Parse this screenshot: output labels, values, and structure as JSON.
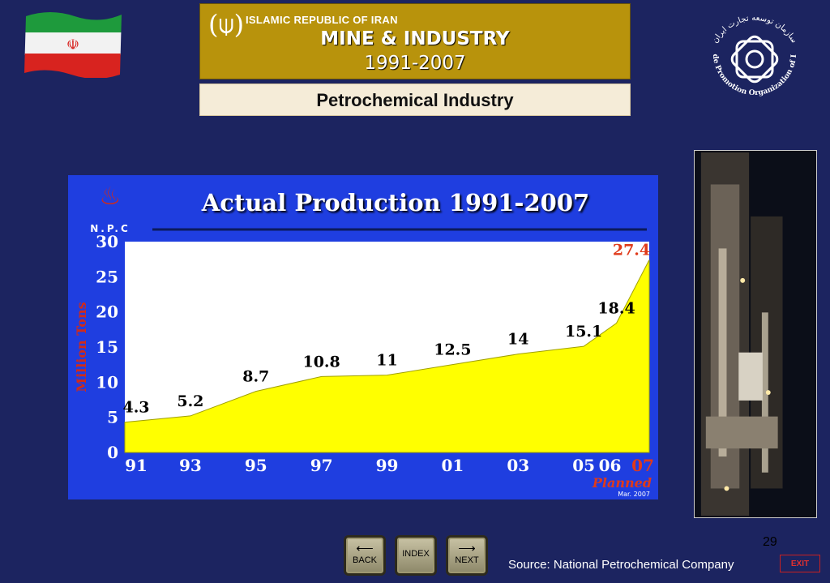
{
  "header": {
    "country": "ISLAMIC REPUBLIC OF IRAN",
    "title": "MINE & INDUSTRY",
    "years": "1991-2007",
    "emblem_icon": "iran-emblem-icon"
  },
  "subtitle": "Petrochemical Industry",
  "org_logo": {
    "icon": "trade-promotion-logo-icon",
    "text_persian": "سازمان توسعه تجارت ایران",
    "text_english": "Trade Promotion Organization of Iran"
  },
  "npc_logo": {
    "icon": "npc-flame-logo-icon",
    "text": "N.P.C"
  },
  "chart_data": {
    "type": "area",
    "title": "Actual Production 1991-2007",
    "ylabel": "Million Tons",
    "xlabel": "",
    "ylim": [
      0,
      30
    ],
    "yticks": [
      0,
      5,
      10,
      15,
      20,
      25,
      30
    ],
    "x_ticks": [
      "91",
      "93",
      "95",
      "97",
      "99",
      "01",
      "03",
      "05",
      "06",
      "07"
    ],
    "x_tick_positions": [
      1991,
      1993,
      1995,
      1997,
      1999,
      2001,
      2003,
      2005,
      2006,
      2007
    ],
    "x": [
      1991,
      1993,
      1995,
      1997,
      1999,
      2001,
      2003,
      2005,
      2006,
      2007
    ],
    "values": [
      4.3,
      5.2,
      8.7,
      10.8,
      11,
      12.5,
      14,
      15.1,
      18.4,
      27.4
    ],
    "data_labels": [
      "4.3",
      "5.2",
      "8.7",
      "10.8",
      "11",
      "12.5",
      "14",
      "15.1",
      "18.4",
      "27.4"
    ],
    "highlight_last": true,
    "planned_label": "Planned",
    "date_note": "Mar. 2007",
    "fill_color": "#ffff00",
    "plot_bg": "#ffffff",
    "panel_bg": "#1f3ee0",
    "highlight_color": "#e03a1a",
    "grid": false
  },
  "navigation": {
    "back_label": "BACK",
    "index_label": "INDEX",
    "next_label": "NEXT",
    "exit_label": "EXIT"
  },
  "page_number": "29",
  "source": "Source: National Petrochemical Company"
}
